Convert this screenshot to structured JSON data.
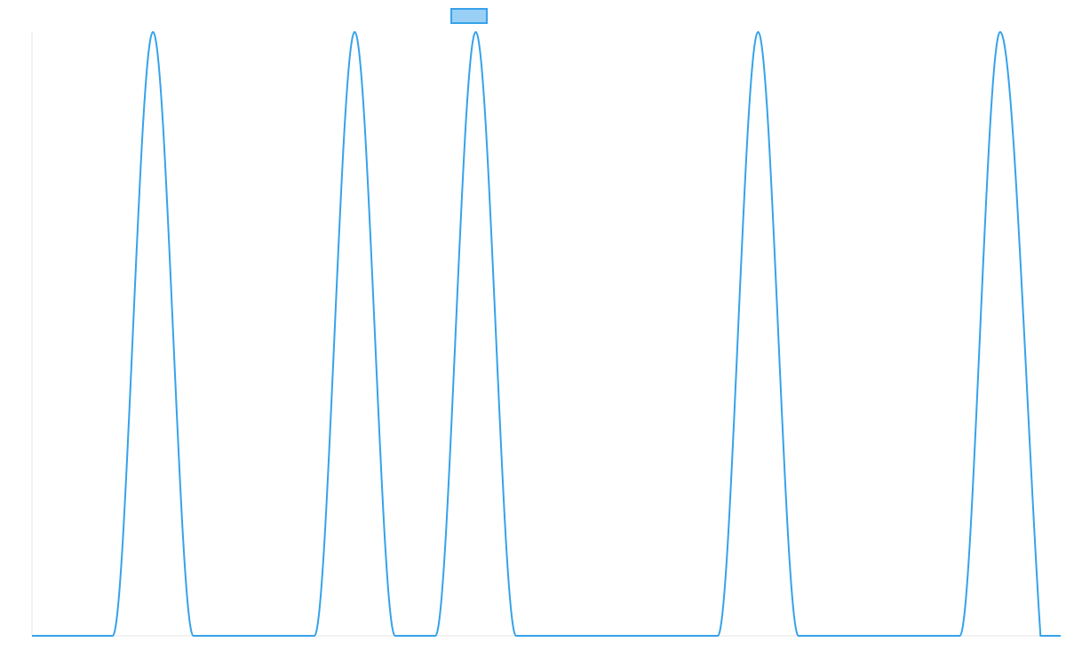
{
  "colors": {
    "series_stroke": "#36A2EB",
    "legend_fill": "#9AD0F5",
    "axis_line": "#E5E5E5",
    "background": "#FFFFFF"
  },
  "chart_data": {
    "type": "line",
    "title": "",
    "xlabel": "",
    "ylabel": "",
    "grid": false,
    "legend_position": "top",
    "x": [
      0,
      2,
      4,
      6,
      8,
      10,
      12,
      14,
      16,
      18,
      20,
      22,
      24,
      26,
      28,
      30,
      32,
      34,
      36,
      38,
      40,
      42,
      44,
      46,
      48,
      50
    ],
    "xlim": [
      0,
      51
    ],
    "ylim": [
      0,
      1
    ],
    "series": [
      {
        "name": "",
        "values": [
          0,
          0,
          0,
          1,
          0,
          0,
          0,
          0,
          1,
          0,
          0,
          1,
          0,
          0,
          0,
          0,
          0,
          0,
          1,
          0,
          0,
          0,
          0,
          0,
          1,
          0
        ]
      }
    ]
  }
}
